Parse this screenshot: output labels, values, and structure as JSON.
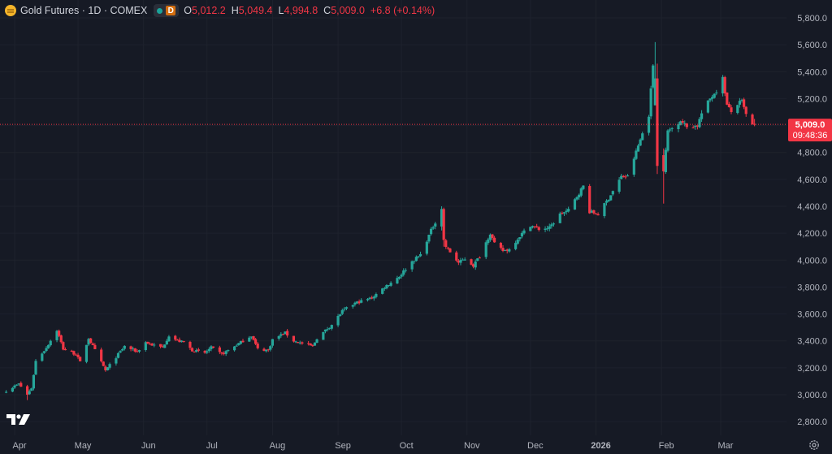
{
  "legend": {
    "title": "Gold Futures · 1D · COMEX",
    "open_label": "O",
    "open": "5,012.2",
    "high_label": "H",
    "high": "5,049.4",
    "low_label": "L",
    "low": "4,994.8",
    "close_label": "C",
    "close": "5,009.0",
    "change": "+6.8 (+0.14%)",
    "status_dot": "market-open-icon",
    "badge": "D"
  },
  "price_tag": {
    "price": "5,009.0",
    "countdown": "09:48:36",
    "value": 5009.0
  },
  "colors": {
    "background": "#161a25",
    "up": "#26a69a",
    "down": "#f23645",
    "grid": "#1e222d",
    "text": "#b2b5be",
    "tag": "#f23645"
  },
  "chart_data": {
    "type": "candlestick",
    "symbol": "Gold Futures",
    "interval": "1D",
    "exchange": "COMEX",
    "ylim": [
      2700,
      5900
    ],
    "y_ticks": [
      2800,
      3000,
      3200,
      3400,
      3600,
      3800,
      4000,
      4200,
      4400,
      4600,
      4800,
      5000,
      5200,
      5400,
      5600,
      5800
    ],
    "y_tick_labels": [
      "2,800.0",
      "3,000.0",
      "3,200.0",
      "3,400.0",
      "3,600.0",
      "3,800.0",
      "4,000.0",
      "4,200.0",
      "4,400.0",
      "4,600.0",
      "4,800.0",
      "5,000.0",
      "5,200.0",
      "5,400.0",
      "5,600.0",
      "5,800.0"
    ],
    "x_tick_labels": [
      "Apr",
      "May",
      "Jun",
      "Jul",
      "Aug",
      "Sep",
      "Oct",
      "Nov",
      "Dec",
      "2026",
      "Feb",
      "Mar"
    ],
    "x_tick_dates": [
      "2025-04-01",
      "2025-05-01",
      "2025-06-01",
      "2025-07-01",
      "2025-08-01",
      "2025-09-01",
      "2025-10-01",
      "2025-11-01",
      "2025-12-01",
      "2026-01-01",
      "2026-02-01",
      "2026-03-01"
    ],
    "grid": true,
    "close_anchors": [
      [
        "2025-03-28",
        3030
      ],
      [
        "2025-04-03",
        3080
      ],
      [
        "2025-04-07",
        3000
      ],
      [
        "2025-04-09",
        3050
      ],
      [
        "2025-04-11",
        3250
      ],
      [
        "2025-04-16",
        3350
      ],
      [
        "2025-04-21",
        3480
      ],
      [
        "2025-04-24",
        3340
      ],
      [
        "2025-04-30",
        3300
      ],
      [
        "2025-05-02",
        3240
      ],
      [
        "2025-05-06",
        3420
      ],
      [
        "2025-05-09",
        3330
      ],
      [
        "2025-05-14",
        3180
      ],
      [
        "2025-05-20",
        3300
      ],
      [
        "2025-05-23",
        3360
      ],
      [
        "2025-05-29",
        3320
      ],
      [
        "2025-06-02",
        3390
      ],
      [
        "2025-06-05",
        3370
      ],
      [
        "2025-06-10",
        3350
      ],
      [
        "2025-06-13",
        3440
      ],
      [
        "2025-06-17",
        3400
      ],
      [
        "2025-06-20",
        3390
      ],
      [
        "2025-06-24",
        3330
      ],
      [
        "2025-06-30",
        3310
      ],
      [
        "2025-07-03",
        3350
      ],
      [
        "2025-07-08",
        3300
      ],
      [
        "2025-07-14",
        3360
      ],
      [
        "2025-07-22",
        3440
      ],
      [
        "2025-07-25",
        3340
      ],
      [
        "2025-07-30",
        3330
      ],
      [
        "2025-08-01",
        3410
      ],
      [
        "2025-08-07",
        3460
      ],
      [
        "2025-08-11",
        3400
      ],
      [
        "2025-08-15",
        3380
      ],
      [
        "2025-08-20",
        3360
      ],
      [
        "2025-08-22",
        3420
      ],
      [
        "2025-08-29",
        3520
      ],
      [
        "2025-09-03",
        3620
      ],
      [
        "2025-09-09",
        3680
      ],
      [
        "2025-09-17",
        3720
      ],
      [
        "2025-09-23",
        3800
      ],
      [
        "2025-09-30",
        3880
      ],
      [
        "2025-10-06",
        3990
      ],
      [
        "2025-10-10",
        4040
      ],
      [
        "2025-10-15",
        4220
      ],
      [
        "2025-10-20",
        4380
      ],
      [
        "2025-10-21",
        4150
      ],
      [
        "2025-10-22",
        4100
      ],
      [
        "2025-10-28",
        3980
      ],
      [
        "2025-10-31",
        4010
      ],
      [
        "2025-11-04",
        3960
      ],
      [
        "2025-11-07",
        4030
      ],
      [
        "2025-11-12",
        4200
      ],
      [
        "2025-11-14",
        4120
      ],
      [
        "2025-11-18",
        4070
      ],
      [
        "2025-11-21",
        4080
      ],
      [
        "2025-11-26",
        4180
      ],
      [
        "2025-12-01",
        4260
      ],
      [
        "2025-12-05",
        4230
      ],
      [
        "2025-12-10",
        4240
      ],
      [
        "2025-12-15",
        4340
      ],
      [
        "2025-12-19",
        4370
      ],
      [
        "2025-12-26",
        4550
      ],
      [
        "2025-12-29",
        4360
      ],
      [
        "2026-01-02",
        4340
      ],
      [
        "2026-01-07",
        4460
      ],
      [
        "2026-01-13",
        4620
      ],
      [
        "2026-01-16",
        4620
      ],
      [
        "2026-01-21",
        4850
      ],
      [
        "2026-01-26",
        5080
      ],
      [
        "2026-01-28",
        5450
      ],
      [
        "2026-01-29",
        5350
      ],
      [
        "2026-01-30",
        4700
      ],
      [
        "2026-02-02",
        4660
      ],
      [
        "2026-02-04",
        4960
      ],
      [
        "2026-02-06",
        4980
      ],
      [
        "2026-02-10",
        5040
      ],
      [
        "2026-02-13",
        4990
      ],
      [
        "2026-02-18",
        5000
      ],
      [
        "2026-02-20",
        5090
      ],
      [
        "2026-02-24",
        5200
      ],
      [
        "2026-02-27",
        5260
      ],
      [
        "2026-03-02",
        5350
      ],
      [
        "2026-03-04",
        5150
      ],
      [
        "2026-03-06",
        5100
      ],
      [
        "2026-03-09",
        5160
      ],
      [
        "2026-03-11",
        5180
      ],
      [
        "2026-03-13",
        5080
      ],
      [
        "2026-03-16",
        5002
      ],
      [
        "2026-03-17",
        5009
      ]
    ],
    "last_bar": {
      "date": "2026-03-17",
      "open": 5012.2,
      "high": 5049.4,
      "low": 4994.8,
      "close": 5009.0
    },
    "period_high": 5620,
    "period_low": 2960,
    "current_price": 5009.0
  }
}
